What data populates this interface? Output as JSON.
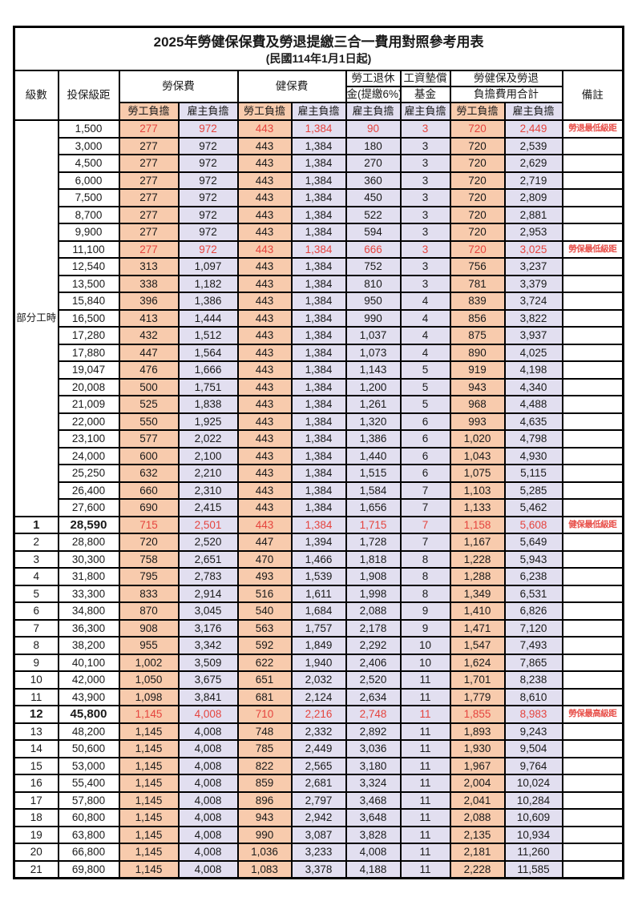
{
  "page": {
    "title": "2025年勞健保保費及勞退提繳三合一費用對照參考用表",
    "subtitle": "(民國114年1月1日起)"
  },
  "colors": {
    "employee_share_bg": "#F8CBAD",
    "employer_share_bg": "#E2DFF0",
    "highlight_red": "#E5443E",
    "remark_red": "#E8504A",
    "grid": "#000000"
  },
  "header": {
    "level": "級數",
    "bracket": "投保級距",
    "labor_group": "勞保費",
    "health_group": "健保費",
    "pension_line1": "勞工退休",
    "pension_line2": "金(提繳6%)",
    "fund_line1": "工資墊償",
    "fund_line2": "基金",
    "total_line1": "勞健保及勞退",
    "total_line2": "負擔費用合計",
    "remark": "備註",
    "employee_share": "勞工負擔",
    "employer_share": "雇主負擔"
  },
  "part_time": {
    "label": "部分工時",
    "rowspan": 23
  },
  "rows": [
    {
      "level": "",
      "bracket": "1,500",
      "values": [
        "277",
        "972",
        "443",
        "1,384",
        "90",
        "3",
        "720",
        "2,449"
      ],
      "remark": "勞退最低級距",
      "highlight": true
    },
    {
      "level": "",
      "bracket": "3,000",
      "values": [
        "277",
        "972",
        "443",
        "1,384",
        "180",
        "3",
        "720",
        "2,539"
      ],
      "remark": ""
    },
    {
      "level": "",
      "bracket": "4,500",
      "values": [
        "277",
        "972",
        "443",
        "1,384",
        "270",
        "3",
        "720",
        "2,629"
      ],
      "remark": ""
    },
    {
      "level": "",
      "bracket": "6,000",
      "values": [
        "277",
        "972",
        "443",
        "1,384",
        "360",
        "3",
        "720",
        "2,719"
      ],
      "remark": ""
    },
    {
      "level": "",
      "bracket": "7,500",
      "values": [
        "277",
        "972",
        "443",
        "1,384",
        "450",
        "3",
        "720",
        "2,809"
      ],
      "remark": ""
    },
    {
      "level": "",
      "bracket": "8,700",
      "values": [
        "277",
        "972",
        "443",
        "1,384",
        "522",
        "3",
        "720",
        "2,881"
      ],
      "remark": ""
    },
    {
      "level": "",
      "bracket": "9,900",
      "values": [
        "277",
        "972",
        "443",
        "1,384",
        "594",
        "3",
        "720",
        "2,953"
      ],
      "remark": ""
    },
    {
      "level": "",
      "bracket": "11,100",
      "values": [
        "277",
        "972",
        "443",
        "1,384",
        "666",
        "3",
        "720",
        "3,025"
      ],
      "remark": "勞保最低級距",
      "highlight": true
    },
    {
      "level": "",
      "bracket": "12,540",
      "values": [
        "313",
        "1,097",
        "443",
        "1,384",
        "752",
        "3",
        "756",
        "3,237"
      ],
      "remark": ""
    },
    {
      "level": "",
      "bracket": "13,500",
      "values": [
        "338",
        "1,182",
        "443",
        "1,384",
        "810",
        "3",
        "781",
        "3,379"
      ],
      "remark": ""
    },
    {
      "level": "",
      "bracket": "15,840",
      "values": [
        "396",
        "1,386",
        "443",
        "1,384",
        "950",
        "4",
        "839",
        "3,724"
      ],
      "remark": ""
    },
    {
      "level": "",
      "bracket": "16,500",
      "values": [
        "413",
        "1,444",
        "443",
        "1,384",
        "990",
        "4",
        "856",
        "3,822"
      ],
      "remark": ""
    },
    {
      "level": "",
      "bracket": "17,280",
      "values": [
        "432",
        "1,512",
        "443",
        "1,384",
        "1,037",
        "4",
        "875",
        "3,937"
      ],
      "remark": ""
    },
    {
      "level": "",
      "bracket": "17,880",
      "values": [
        "447",
        "1,564",
        "443",
        "1,384",
        "1,073",
        "4",
        "890",
        "4,025"
      ],
      "remark": ""
    },
    {
      "level": "",
      "bracket": "19,047",
      "values": [
        "476",
        "1,666",
        "443",
        "1,384",
        "1,143",
        "5",
        "919",
        "4,198"
      ],
      "remark": ""
    },
    {
      "level": "",
      "bracket": "20,008",
      "values": [
        "500",
        "1,751",
        "443",
        "1,384",
        "1,200",
        "5",
        "943",
        "4,340"
      ],
      "remark": ""
    },
    {
      "level": "",
      "bracket": "21,009",
      "values": [
        "525",
        "1,838",
        "443",
        "1,384",
        "1,261",
        "5",
        "968",
        "4,488"
      ],
      "remark": ""
    },
    {
      "level": "",
      "bracket": "22,000",
      "values": [
        "550",
        "1,925",
        "443",
        "1,384",
        "1,320",
        "6",
        "993",
        "4,635"
      ],
      "remark": ""
    },
    {
      "level": "",
      "bracket": "23,100",
      "values": [
        "577",
        "2,022",
        "443",
        "1,384",
        "1,386",
        "6",
        "1,020",
        "4,798"
      ],
      "remark": ""
    },
    {
      "level": "",
      "bracket": "24,000",
      "values": [
        "600",
        "2,100",
        "443",
        "1,384",
        "1,440",
        "6",
        "1,043",
        "4,930"
      ],
      "remark": ""
    },
    {
      "level": "",
      "bracket": "25,250",
      "values": [
        "632",
        "2,210",
        "443",
        "1,384",
        "1,515",
        "6",
        "1,075",
        "5,115"
      ],
      "remark": ""
    },
    {
      "level": "",
      "bracket": "26,400",
      "values": [
        "660",
        "2,310",
        "443",
        "1,384",
        "1,584",
        "7",
        "1,103",
        "5,285"
      ],
      "remark": ""
    },
    {
      "level": "",
      "bracket": "27,600",
      "values": [
        "690",
        "2,415",
        "443",
        "1,384",
        "1,656",
        "7",
        "1,133",
        "5,462"
      ],
      "remark": ""
    },
    {
      "level": "1",
      "bracket": "28,590",
      "values": [
        "715",
        "2,501",
        "443",
        "1,384",
        "1,715",
        "7",
        "1,158",
        "5,608"
      ],
      "remark": "健保最低級距",
      "highlight": true,
      "emphasis": true
    },
    {
      "level": "2",
      "bracket": "28,800",
      "values": [
        "720",
        "2,520",
        "447",
        "1,394",
        "1,728",
        "7",
        "1,167",
        "5,649"
      ],
      "remark": ""
    },
    {
      "level": "3",
      "bracket": "30,300",
      "values": [
        "758",
        "2,651",
        "470",
        "1,466",
        "1,818",
        "8",
        "1,228",
        "5,943"
      ],
      "remark": ""
    },
    {
      "level": "4",
      "bracket": "31,800",
      "values": [
        "795",
        "2,783",
        "493",
        "1,539",
        "1,908",
        "8",
        "1,288",
        "6,238"
      ],
      "remark": ""
    },
    {
      "level": "5",
      "bracket": "33,300",
      "values": [
        "833",
        "2,914",
        "516",
        "1,611",
        "1,998",
        "8",
        "1,349",
        "6,531"
      ],
      "remark": ""
    },
    {
      "level": "6",
      "bracket": "34,800",
      "values": [
        "870",
        "3,045",
        "540",
        "1,684",
        "2,088",
        "9",
        "1,410",
        "6,826"
      ],
      "remark": ""
    },
    {
      "level": "7",
      "bracket": "36,300",
      "values": [
        "908",
        "3,176",
        "563",
        "1,757",
        "2,178",
        "9",
        "1,471",
        "7,120"
      ],
      "remark": ""
    },
    {
      "level": "8",
      "bracket": "38,200",
      "values": [
        "955",
        "3,342",
        "592",
        "1,849",
        "2,292",
        "10",
        "1,547",
        "7,493"
      ],
      "remark": ""
    },
    {
      "level": "9",
      "bracket": "40,100",
      "values": [
        "1,002",
        "3,509",
        "622",
        "1,940",
        "2,406",
        "10",
        "1,624",
        "7,865"
      ],
      "remark": ""
    },
    {
      "level": "10",
      "bracket": "42,000",
      "values": [
        "1,050",
        "3,675",
        "651",
        "2,032",
        "2,520",
        "11",
        "1,701",
        "8,238"
      ],
      "remark": ""
    },
    {
      "level": "11",
      "bracket": "43,900",
      "values": [
        "1,098",
        "3,841",
        "681",
        "2,124",
        "2,634",
        "11",
        "1,779",
        "8,610"
      ],
      "remark": ""
    },
    {
      "level": "12",
      "bracket": "45,800",
      "values": [
        "1,145",
        "4,008",
        "710",
        "2,216",
        "2,748",
        "11",
        "1,855",
        "8,983"
      ],
      "remark": "勞保最高級距",
      "highlight": true,
      "emphasis": true
    },
    {
      "level": "13",
      "bracket": "48,200",
      "values": [
        "1,145",
        "4,008",
        "748",
        "2,332",
        "2,892",
        "11",
        "1,893",
        "9,243"
      ],
      "remark": ""
    },
    {
      "level": "14",
      "bracket": "50,600",
      "values": [
        "1,145",
        "4,008",
        "785",
        "2,449",
        "3,036",
        "11",
        "1,930",
        "9,504"
      ],
      "remark": ""
    },
    {
      "level": "15",
      "bracket": "53,000",
      "values": [
        "1,145",
        "4,008",
        "822",
        "2,565",
        "3,180",
        "11",
        "1,967",
        "9,764"
      ],
      "remark": ""
    },
    {
      "level": "16",
      "bracket": "55,400",
      "values": [
        "1,145",
        "4,008",
        "859",
        "2,681",
        "3,324",
        "11",
        "2,004",
        "10,024"
      ],
      "remark": ""
    },
    {
      "level": "17",
      "bracket": "57,800",
      "values": [
        "1,145",
        "4,008",
        "896",
        "2,797",
        "3,468",
        "11",
        "2,041",
        "10,284"
      ],
      "remark": ""
    },
    {
      "level": "18",
      "bracket": "60,800",
      "values": [
        "1,145",
        "4,008",
        "943",
        "2,942",
        "3,648",
        "11",
        "2,088",
        "10,609"
      ],
      "remark": ""
    },
    {
      "level": "19",
      "bracket": "63,800",
      "values": [
        "1,145",
        "4,008",
        "990",
        "3,087",
        "3,828",
        "11",
        "2,135",
        "10,934"
      ],
      "remark": ""
    },
    {
      "level": "20",
      "bracket": "66,800",
      "values": [
        "1,145",
        "4,008",
        "1,036",
        "3,233",
        "4,008",
        "11",
        "2,181",
        "11,260"
      ],
      "remark": ""
    },
    {
      "level": "21",
      "bracket": "69,800",
      "values": [
        "1,145",
        "4,008",
        "1,083",
        "3,378",
        "4,188",
        "11",
        "2,228",
        "11,585"
      ],
      "remark": ""
    }
  ]
}
